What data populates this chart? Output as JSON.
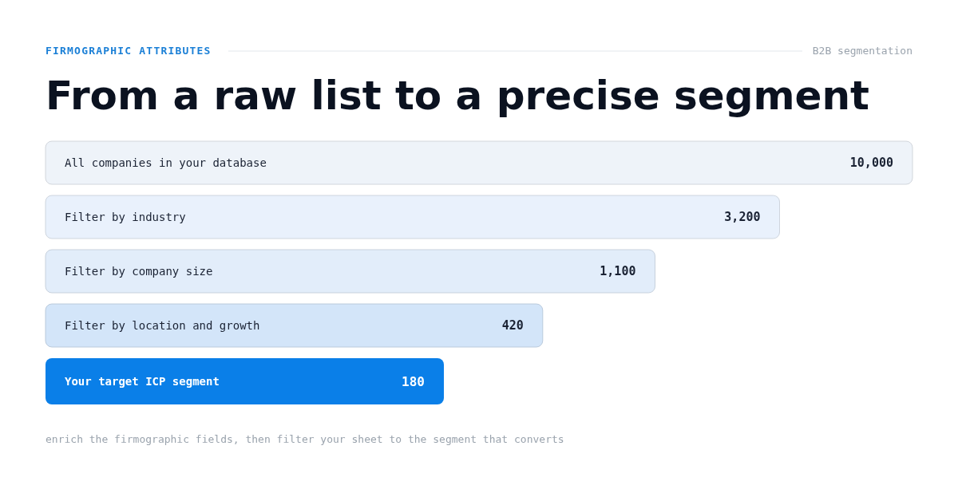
{
  "chart_data": {
    "type": "other",
    "title": "From a raw list to a precise segment",
    "subtitle": "FIRMOGRAPHIC ATTRIBUTES",
    "annotations": [
      "B2B segmentation",
      "enrich the firmographic fields, then filter your sheet to the segment that converts"
    ],
    "categories": [
      "All companies in your database",
      "Filter by industry",
      "Filter by company size",
      "Filter by location and growth",
      "Your target ICP segment"
    ],
    "values": [
      10000,
      3200,
      1100,
      420,
      180
    ],
    "colors": [
      "#eef3f9",
      "#e9f1fc",
      "#e2edfa",
      "#d3e5f9",
      "#0a7fe8"
    ],
    "value_labels": [
      "10,000",
      "3,200",
      "1,100",
      "420",
      "180"
    ]
  }
}
